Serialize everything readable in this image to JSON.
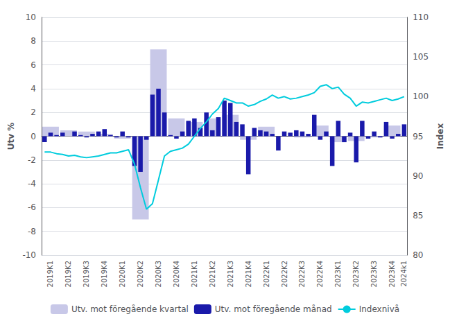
{
  "chart_data": {
    "type": "bar",
    "categories": [
      null,
      "2019K1",
      null,
      null,
      "2019K2",
      null,
      null,
      "2019K3",
      null,
      null,
      "2019K4",
      null,
      null,
      "2020K1",
      null,
      null,
      "2020K2",
      null,
      null,
      "2020K3",
      null,
      null,
      "2020K4",
      null,
      null,
      "2021K1",
      null,
      null,
      "2021K2",
      null,
      null,
      "2021K3",
      null,
      null,
      "2021K4",
      null,
      null,
      "2022K1",
      null,
      null,
      "2022K2",
      null,
      null,
      "2022K3",
      null,
      null,
      "2022K4",
      null,
      null,
      "2023K1",
      null,
      null,
      "2023K2",
      null,
      null,
      "2023K3",
      null,
      null,
      "2023K4",
      null,
      "2024k1"
    ],
    "series": [
      {
        "name": "Utv. mot föregående kvartal",
        "type": "bar",
        "color": "#c8c8e8",
        "values": [
          null,
          0.8,
          null,
          null,
          0.5,
          null,
          null,
          0.4,
          null,
          null,
          0.2,
          null,
          null,
          -0.2,
          null,
          null,
          -7.0,
          null,
          null,
          7.3,
          null,
          null,
          1.5,
          null,
          null,
          1.2,
          null,
          null,
          1.5,
          null,
          null,
          1.8,
          null,
          null,
          -0.3,
          null,
          null,
          0.8,
          null,
          null,
          0.0,
          null,
          null,
          -0.1,
          null,
          null,
          0.9,
          null,
          null,
          -0.5,
          null,
          null,
          -0.4,
          null,
          null,
          -0.1,
          null,
          null,
          0.9,
          null,
          0.0
        ]
      },
      {
        "name": "Utv. mot föregående månad",
        "type": "bar",
        "color": "#1a1aaa",
        "values": [
          -0.5,
          0.3,
          0.1,
          0.3,
          0.0,
          0.4,
          0.1,
          -0.1,
          0.2,
          0.4,
          0.6,
          0.1,
          -0.1,
          0.4,
          -0.1,
          -2.5,
          -3.0,
          -0.3,
          3.5,
          4.0,
          2.0,
          0.1,
          -0.2,
          0.4,
          1.3,
          1.5,
          0.7,
          2.0,
          0.5,
          1.6,
          3.0,
          2.8,
          1.2,
          1.0,
          -3.2,
          0.7,
          0.5,
          0.4,
          0.2,
          -1.2,
          0.4,
          0.3,
          0.5,
          0.4,
          0.2,
          1.8,
          -0.3,
          0.4,
          -2.5,
          1.3,
          -0.5,
          0.3,
          -2.2,
          1.3,
          -0.2,
          0.4,
          -0.1,
          1.2,
          -0.2,
          0.2,
          1.0
        ]
      },
      {
        "name": "Indexnivå",
        "type": "line",
        "color": "#00ccdd",
        "axis": "y2",
        "values": [
          93.0,
          93.0,
          92.8,
          92.7,
          92.5,
          92.6,
          92.4,
          92.3,
          92.4,
          92.5,
          92.7,
          92.9,
          92.9,
          93.1,
          93.3,
          91.5,
          88.5,
          85.8,
          86.5,
          89.5,
          92.5,
          93.1,
          93.3,
          93.5,
          94.0,
          95.0,
          96.0,
          96.8,
          97.8,
          98.5,
          99.8,
          99.5,
          99.2,
          99.2,
          98.8,
          99.0,
          99.4,
          99.7,
          100.2,
          99.8,
          100.0,
          99.7,
          99.8,
          100.0,
          100.2,
          100.5,
          101.3,
          101.5,
          101.0,
          101.2,
          100.3,
          99.8,
          98.8,
          99.3,
          99.2,
          99.4,
          99.6,
          99.8,
          99.5,
          99.7,
          100.0
        ]
      }
    ],
    "ylabel": "Utv %",
    "y2label": "Index",
    "ylim": [
      -10,
      10
    ],
    "yticks": [
      -10,
      -8,
      -6,
      -4,
      -2,
      0,
      2,
      4,
      6,
      8,
      10
    ],
    "y2lim": [
      80,
      110
    ],
    "y2ticks": [
      80,
      85,
      90,
      95,
      100,
      105,
      110
    ],
    "grid": true,
    "legend": "bottom"
  }
}
